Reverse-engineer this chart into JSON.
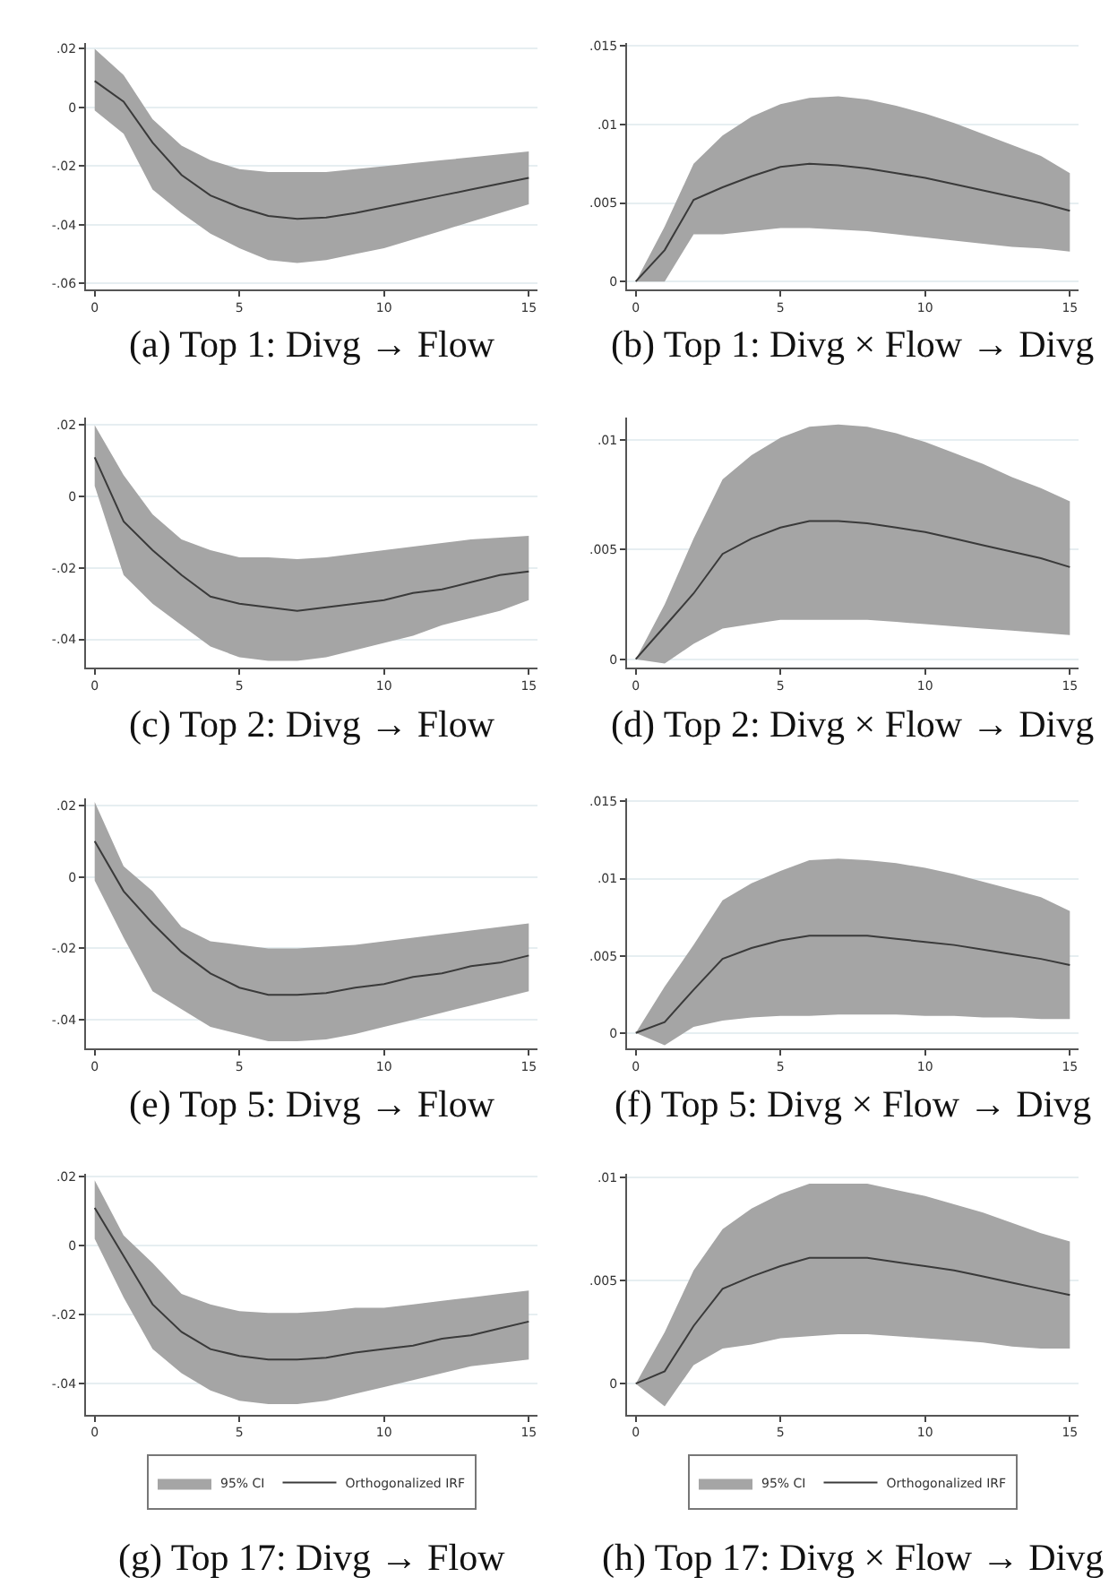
{
  "chart_data": [
    {
      "type": "line",
      "title": "(a) Top 1: Divg → Flow",
      "x": [
        0,
        1,
        2,
        3,
        4,
        5,
        6,
        7,
        8,
        9,
        10,
        11,
        12,
        13,
        14,
        15
      ],
      "xlim": [
        -0.3,
        15.3
      ],
      "xticks": [
        0,
        5,
        10,
        15
      ],
      "ylim": [
        -0.062,
        0.022
      ],
      "yticks": [
        {
          "value": 0.02,
          "label": ".02"
        },
        0,
        {
          "value": -0.02,
          "label": "-.02"
        },
        {
          "value": -0.04,
          "label": "-.04"
        },
        {
          "value": -0.06,
          "label": "-.06"
        }
      ],
      "grid": "y",
      "legend": false,
      "series": [
        {
          "type": "area",
          "color": "#a5a5a5",
          "values": [
            null,
            null,
            null,
            null,
            null,
            null,
            null,
            null,
            null,
            null,
            null,
            null,
            null,
            null,
            null,
            null
          ],
          "upper": [
            0.02,
            0.011,
            -0.004,
            -0.013,
            -0.018,
            -0.021,
            -0.022,
            -0.022,
            -0.022,
            -0.021,
            -0.02,
            -0.019,
            -0.018,
            -0.017,
            -0.016,
            -0.015
          ],
          "lower": [
            -0.001,
            -0.009,
            -0.028,
            -0.036,
            -0.043,
            -0.048,
            -0.052,
            -0.053,
            -0.052,
            -0.05,
            -0.048,
            -0.045,
            -0.042,
            -0.039,
            -0.036,
            -0.033
          ]
        },
        {
          "color": "#3a3a3a",
          "values": [
            0.009,
            0.002,
            -0.012,
            -0.023,
            -0.03,
            -0.034,
            -0.037,
            -0.038,
            -0.0375,
            -0.036,
            -0.034,
            -0.032,
            -0.03,
            -0.028,
            -0.026,
            -0.024
          ]
        }
      ]
    },
    {
      "type": "line",
      "title": "(b) Top 1: Divg × Flow → Divg",
      "x": [
        0,
        1,
        2,
        3,
        4,
        5,
        6,
        7,
        8,
        9,
        10,
        11,
        12,
        13,
        14,
        15
      ],
      "xlim": [
        -0.3,
        15.3
      ],
      "xticks": [
        0,
        5,
        10,
        15
      ],
      "ylim": [
        -0.0005,
        0.0152
      ],
      "yticks": [
        0,
        {
          "value": 0.005,
          "label": ".005"
        },
        {
          "value": 0.01,
          "label": ".01"
        },
        {
          "value": 0.015,
          "label": ".015"
        }
      ],
      "grid": "y",
      "legend": false,
      "series": [
        {
          "type": "area",
          "color": "#a5a5a5",
          "values": [
            null,
            null,
            null,
            null,
            null,
            null,
            null,
            null,
            null,
            null,
            null,
            null,
            null,
            null,
            null,
            null
          ],
          "upper": [
            0,
            0.0035,
            0.0075,
            0.0093,
            0.0105,
            0.0113,
            0.0117,
            0.0118,
            0.0116,
            0.0112,
            0.0107,
            0.0101,
            0.0094,
            0.0087,
            0.008,
            0.0069
          ],
          "lower": [
            0,
            0,
            0.003,
            0.003,
            0.0032,
            0.0034,
            0.0034,
            0.0033,
            0.0032,
            0.003,
            0.0028,
            0.0026,
            0.0024,
            0.0022,
            0.0021,
            0.0019
          ]
        },
        {
          "color": "#3a3a3a",
          "values": [
            0,
            0.002,
            0.0052,
            0.006,
            0.0067,
            0.0073,
            0.0075,
            0.0074,
            0.0072,
            0.0069,
            0.0066,
            0.0062,
            0.0058,
            0.0054,
            0.005,
            0.0045
          ]
        }
      ]
    },
    {
      "type": "line",
      "title": "(c) Top 2: Divg → Flow",
      "x": [
        0,
        1,
        2,
        3,
        4,
        5,
        6,
        7,
        8,
        9,
        10,
        11,
        12,
        13,
        14,
        15
      ],
      "xlim": [
        -0.3,
        15.3
      ],
      "xticks": [
        0,
        5,
        10,
        15
      ],
      "ylim": [
        -0.048,
        0.022
      ],
      "yticks": [
        {
          "value": 0.02,
          "label": ".02"
        },
        0,
        {
          "value": -0.02,
          "label": "-.02"
        },
        {
          "value": -0.04,
          "label": "-.04"
        }
      ],
      "grid": "y",
      "legend": false,
      "series": [
        {
          "type": "area",
          "color": "#a5a5a5",
          "values": [
            null,
            null,
            null,
            null,
            null,
            null,
            null,
            null,
            null,
            null,
            null,
            null,
            null,
            null,
            null,
            null
          ],
          "upper": [
            0.02,
            0.006,
            -0.005,
            -0.012,
            -0.015,
            -0.017,
            -0.017,
            -0.0175,
            -0.017,
            -0.016,
            -0.015,
            -0.014,
            -0.013,
            -0.012,
            -0.0115,
            -0.011
          ],
          "lower": [
            0.003,
            -0.022,
            -0.03,
            -0.036,
            -0.042,
            -0.045,
            -0.046,
            -0.046,
            -0.045,
            -0.043,
            -0.041,
            -0.039,
            -0.036,
            -0.034,
            -0.032,
            -0.029
          ]
        },
        {
          "color": "#3a3a3a",
          "values": [
            0.011,
            -0.007,
            -0.015,
            -0.022,
            -0.028,
            -0.03,
            -0.031,
            -0.032,
            -0.031,
            -0.03,
            -0.029,
            -0.027,
            -0.026,
            -0.024,
            -0.022,
            -0.021
          ]
        }
      ]
    },
    {
      "type": "line",
      "title": "(d) Top 2: Divg × Flow → Divg",
      "x": [
        0,
        1,
        2,
        3,
        4,
        5,
        6,
        7,
        8,
        9,
        10,
        11,
        12,
        13,
        14,
        15
      ],
      "xlim": [
        -0.3,
        15.3
      ],
      "xticks": [
        0,
        5,
        10,
        15
      ],
      "ylim": [
        -0.0004,
        0.011
      ],
      "yticks": [
        0,
        {
          "value": 0.005,
          "label": ".005"
        },
        {
          "value": 0.01,
          "label": ".01"
        }
      ],
      "grid": "y",
      "legend": false,
      "series": [
        {
          "type": "area",
          "color": "#a5a5a5",
          "values": [
            null,
            null,
            null,
            null,
            null,
            null,
            null,
            null,
            null,
            null,
            null,
            null,
            null,
            null,
            null,
            null
          ],
          "upper": [
            0,
            0.0025,
            0.0055,
            0.0082,
            0.0093,
            0.0101,
            0.0106,
            0.0107,
            0.0106,
            0.0103,
            0.0099,
            0.0094,
            0.0089,
            0.0083,
            0.0078,
            0.0072
          ],
          "lower": [
            0,
            -0.0002,
            0.0007,
            0.0014,
            0.0016,
            0.0018,
            0.0018,
            0.0018,
            0.0018,
            0.0017,
            0.0016,
            0.0015,
            0.0014,
            0.0013,
            0.0012,
            0.0011
          ]
        },
        {
          "color": "#3a3a3a",
          "values": [
            0,
            0.0015,
            0.003,
            0.0048,
            0.0055,
            0.006,
            0.0063,
            0.0063,
            0.0062,
            0.006,
            0.0058,
            0.0055,
            0.0052,
            0.0049,
            0.0046,
            0.0042
          ]
        }
      ]
    },
    {
      "type": "line",
      "title": "(e) Top 5: Divg → Flow",
      "x": [
        0,
        1,
        2,
        3,
        4,
        5,
        6,
        7,
        8,
        9,
        10,
        11,
        12,
        13,
        14,
        15
      ],
      "xlim": [
        -0.3,
        15.3
      ],
      "xticks": [
        0,
        5,
        10,
        15
      ],
      "ylim": [
        -0.048,
        0.022
      ],
      "yticks": [
        {
          "value": 0.02,
          "label": ".02"
        },
        0,
        {
          "value": -0.02,
          "label": "-.02"
        },
        {
          "value": -0.04,
          "label": "-.04"
        }
      ],
      "grid": "y",
      "legend": false,
      "series": [
        {
          "type": "area",
          "color": "#a5a5a5",
          "values": [
            null,
            null,
            null,
            null,
            null,
            null,
            null,
            null,
            null,
            null,
            null,
            null,
            null,
            null,
            null,
            null
          ],
          "upper": [
            0.021,
            0.003,
            -0.004,
            -0.014,
            -0.018,
            -0.019,
            -0.02,
            -0.02,
            -0.0195,
            -0.019,
            -0.018,
            -0.017,
            -0.016,
            -0.015,
            -0.014,
            -0.013
          ],
          "lower": [
            -0.001,
            -0.017,
            -0.032,
            -0.037,
            -0.042,
            -0.044,
            -0.046,
            -0.046,
            -0.0455,
            -0.044,
            -0.042,
            -0.04,
            -0.038,
            -0.036,
            -0.034,
            -0.032
          ]
        },
        {
          "color": "#3a3a3a",
          "values": [
            0.01,
            -0.004,
            -0.013,
            -0.021,
            -0.027,
            -0.031,
            -0.033,
            -0.033,
            -0.0325,
            -0.031,
            -0.03,
            -0.028,
            -0.027,
            -0.025,
            -0.024,
            -0.022
          ]
        }
      ]
    },
    {
      "type": "line",
      "title": "(f) Top 5: Divg × Flow → Divg",
      "x": [
        0,
        1,
        2,
        3,
        4,
        5,
        6,
        7,
        8,
        9,
        10,
        11,
        12,
        13,
        14,
        15
      ],
      "xlim": [
        -0.3,
        15.3
      ],
      "xticks": [
        0,
        5,
        10,
        15
      ],
      "ylim": [
        -0.001,
        0.0152
      ],
      "yticks": [
        0,
        {
          "value": 0.005,
          "label": ".005"
        },
        {
          "value": 0.01,
          "label": ".01"
        },
        {
          "value": 0.015,
          "label": ".015"
        }
      ],
      "grid": "y",
      "legend": false,
      "series": [
        {
          "type": "area",
          "color": "#a5a5a5",
          "values": [
            null,
            null,
            null,
            null,
            null,
            null,
            null,
            null,
            null,
            null,
            null,
            null,
            null,
            null,
            null,
            null
          ],
          "upper": [
            0,
            0.003,
            0.0057,
            0.0086,
            0.0097,
            0.0105,
            0.0112,
            0.0113,
            0.0112,
            0.011,
            0.0107,
            0.0103,
            0.0098,
            0.0093,
            0.0088,
            0.0079
          ],
          "lower": [
            0,
            -0.0008,
            0.0004,
            0.0008,
            0.001,
            0.0011,
            0.0011,
            0.0012,
            0.0012,
            0.0012,
            0.0011,
            0.0011,
            0.001,
            0.001,
            0.0009,
            0.0009
          ]
        },
        {
          "color": "#3a3a3a",
          "values": [
            0,
            0.0007,
            0.0028,
            0.0048,
            0.0055,
            0.006,
            0.0063,
            0.0063,
            0.0063,
            0.0061,
            0.0059,
            0.0057,
            0.0054,
            0.0051,
            0.0048,
            0.0044
          ]
        }
      ]
    },
    {
      "type": "line",
      "title": "(g) Top 17: Divg → Flow",
      "x": [
        0,
        1,
        2,
        3,
        4,
        5,
        6,
        7,
        8,
        9,
        10,
        11,
        12,
        13,
        14,
        15
      ],
      "xlim": [
        -0.3,
        15.3
      ],
      "xticks": [
        0,
        5,
        10,
        15
      ],
      "ylim": [
        -0.049,
        0.021
      ],
      "yticks": [
        {
          "value": 0.02,
          "label": ".02"
        },
        0,
        {
          "value": -0.02,
          "label": "-.02"
        },
        {
          "value": -0.04,
          "label": "-.04"
        }
      ],
      "grid": "y",
      "legend": "bottom",
      "series": [
        {
          "type": "area",
          "name": "95% CI",
          "color": "#a5a5a5",
          "values": [
            null,
            null,
            null,
            null,
            null,
            null,
            null,
            null,
            null,
            null,
            null,
            null,
            null,
            null,
            null,
            null
          ],
          "upper": [
            0.019,
            0.003,
            -0.005,
            -0.014,
            -0.017,
            -0.019,
            -0.0195,
            -0.0195,
            -0.019,
            -0.018,
            -0.018,
            -0.017,
            -0.016,
            -0.015,
            -0.014,
            -0.013
          ],
          "lower": [
            0.002,
            -0.015,
            -0.03,
            -0.037,
            -0.042,
            -0.045,
            -0.046,
            -0.046,
            -0.045,
            -0.043,
            -0.041,
            -0.039,
            -0.037,
            -0.035,
            -0.034,
            -0.033
          ]
        },
        {
          "name": "Orthogonalized IRF",
          "color": "#3a3a3a",
          "values": [
            0.011,
            -0.003,
            -0.017,
            -0.025,
            -0.03,
            -0.032,
            -0.033,
            -0.033,
            -0.0325,
            -0.031,
            -0.03,
            -0.029,
            -0.027,
            -0.026,
            -0.024,
            -0.022
          ]
        }
      ]
    },
    {
      "type": "line",
      "title": "(h) Top 17: Divg × Flow → Divg",
      "x": [
        0,
        1,
        2,
        3,
        4,
        5,
        6,
        7,
        8,
        9,
        10,
        11,
        12,
        13,
        14,
        15
      ],
      "xlim": [
        -0.3,
        15.3
      ],
      "xticks": [
        0,
        5,
        10,
        15
      ],
      "ylim": [
        -0.0015,
        0.0102
      ],
      "yticks": [
        0,
        {
          "value": 0.005,
          "label": ".005"
        },
        {
          "value": 0.01,
          "label": ".01"
        }
      ],
      "grid": "y",
      "legend": "bottom",
      "series": [
        {
          "type": "area",
          "name": "95% CI",
          "color": "#a5a5a5",
          "values": [
            null,
            null,
            null,
            null,
            null,
            null,
            null,
            null,
            null,
            null,
            null,
            null,
            null,
            null,
            null,
            null
          ],
          "upper": [
            0,
            0.0025,
            0.0055,
            0.0075,
            0.0085,
            0.0092,
            0.0097,
            0.0097,
            0.0097,
            0.0094,
            0.0091,
            0.0087,
            0.0083,
            0.0078,
            0.0073,
            0.0069
          ],
          "lower": [
            0,
            -0.0011,
            0.0009,
            0.0017,
            0.0019,
            0.0022,
            0.0023,
            0.0024,
            0.0024,
            0.0023,
            0.0022,
            0.0021,
            0.002,
            0.0018,
            0.0017,
            0.0017
          ]
        },
        {
          "name": "Orthogonalized IRF",
          "color": "#3a3a3a",
          "values": [
            0,
            0.0006,
            0.0028,
            0.0046,
            0.0052,
            0.0057,
            0.0061,
            0.0061,
            0.0061,
            0.0059,
            0.0057,
            0.0055,
            0.0052,
            0.0049,
            0.0046,
            0.0043
          ]
        }
      ]
    }
  ]
}
